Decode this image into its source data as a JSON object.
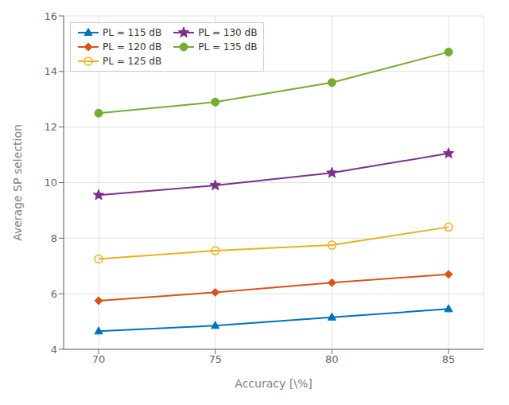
{
  "chart_data": {
    "type": "line",
    "xlabel": "Accuracy [\\%]",
    "ylabel": "Average SP selection",
    "x": [
      70,
      75,
      80,
      85
    ],
    "series": [
      {
        "name": "PL = 115 dB",
        "color": "#0072BD",
        "marker": "triangle",
        "values": [
          4.65,
          4.85,
          5.15,
          5.45
        ]
      },
      {
        "name": "PL = 120 dB",
        "color": "#D95319",
        "marker": "diamond",
        "values": [
          5.75,
          6.05,
          6.4,
          6.7
        ]
      },
      {
        "name": "PL = 125 dB",
        "color": "#EDB120",
        "marker": "open_circle",
        "values": [
          7.25,
          7.55,
          7.75,
          8.4
        ]
      },
      {
        "name": "PL = 130 dB",
        "color": "#7E2F8E",
        "marker": "star",
        "values": [
          9.55,
          9.9,
          10.35,
          11.05
        ]
      },
      {
        "name": "PL = 135 dB",
        "color": "#77AC30",
        "marker": "circle",
        "values": [
          12.5,
          12.9,
          13.6,
          14.7
        ]
      }
    ],
    "xlim": [
      68.5,
      86.5
    ],
    "ylim": [
      4,
      16
    ],
    "xticks": [
      70,
      75,
      80,
      85
    ],
    "yticks": [
      4,
      6,
      8,
      10,
      12,
      14,
      16
    ],
    "grid": true,
    "legend": "upper left"
  }
}
